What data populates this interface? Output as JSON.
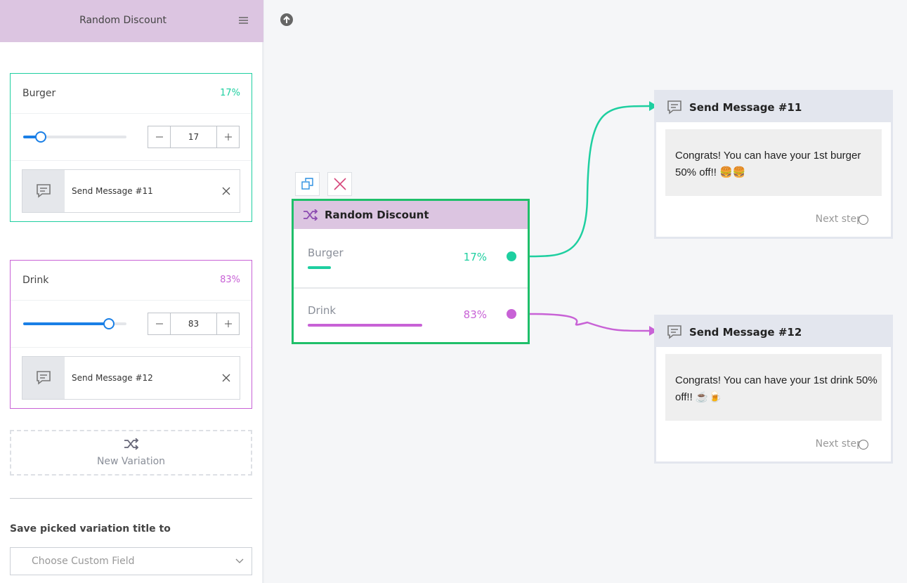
{
  "sidebar": {
    "title": "Random Discount",
    "variations": [
      {
        "name": "Burger",
        "value": 17,
        "percent_label": "17%",
        "color": "#1ecfa0"
      },
      {
        "name": "Drink",
        "value": 83,
        "percent_label": "83%",
        "color": "#c862d6"
      }
    ],
    "new_variation": "New Variation",
    "save_label": "Save picked variation title to",
    "custom_field_placeholder": "Choose Custom Field"
  },
  "canvas": {
    "node_title": "Random Discount",
    "messages": [
      {
        "title": "Send Message #11",
        "text": "Congrats! You can have your 1st burger 50% off!! 🍔🍔",
        "next": "Next step"
      },
      {
        "title": "Send Message #12",
        "text": "Congrats! You can have your 1st drink 50% off!! ☕🍺",
        "next": "Next step"
      }
    ]
  }
}
